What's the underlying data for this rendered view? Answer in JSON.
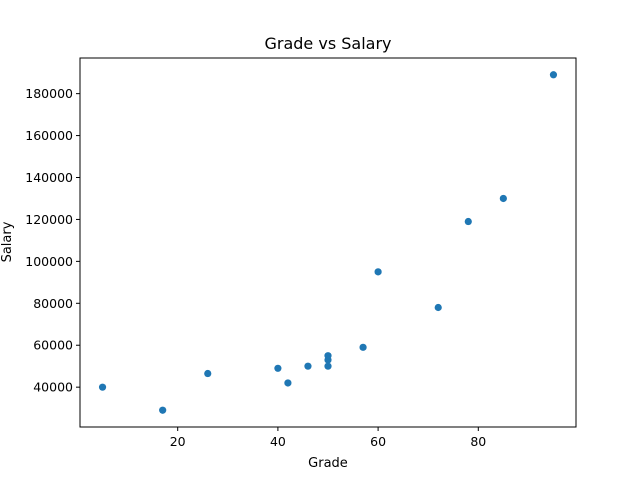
{
  "chart_data": {
    "type": "scatter",
    "title": "Grade vs Salary",
    "xlabel": "Grade",
    "ylabel": "Salary",
    "xlim": [
      0.5,
      99.5
    ],
    "ylim": [
      21000,
      197000
    ],
    "xticks": [
      20,
      40,
      60,
      80
    ],
    "yticks": [
      40000,
      60000,
      80000,
      100000,
      120000,
      140000,
      160000,
      180000
    ],
    "grid": false,
    "legend": "none",
    "color": "#1f77b4",
    "series": [
      {
        "x": [
          5,
          17,
          26,
          40,
          42,
          46,
          50,
          50,
          50,
          57,
          60,
          72,
          78,
          85,
          95
        ],
        "y": [
          40000,
          29000,
          46500,
          49000,
          42000,
          50000,
          50000,
          53000,
          55000,
          59000,
          95000,
          78000,
          119000,
          130000,
          189000
        ]
      }
    ]
  }
}
